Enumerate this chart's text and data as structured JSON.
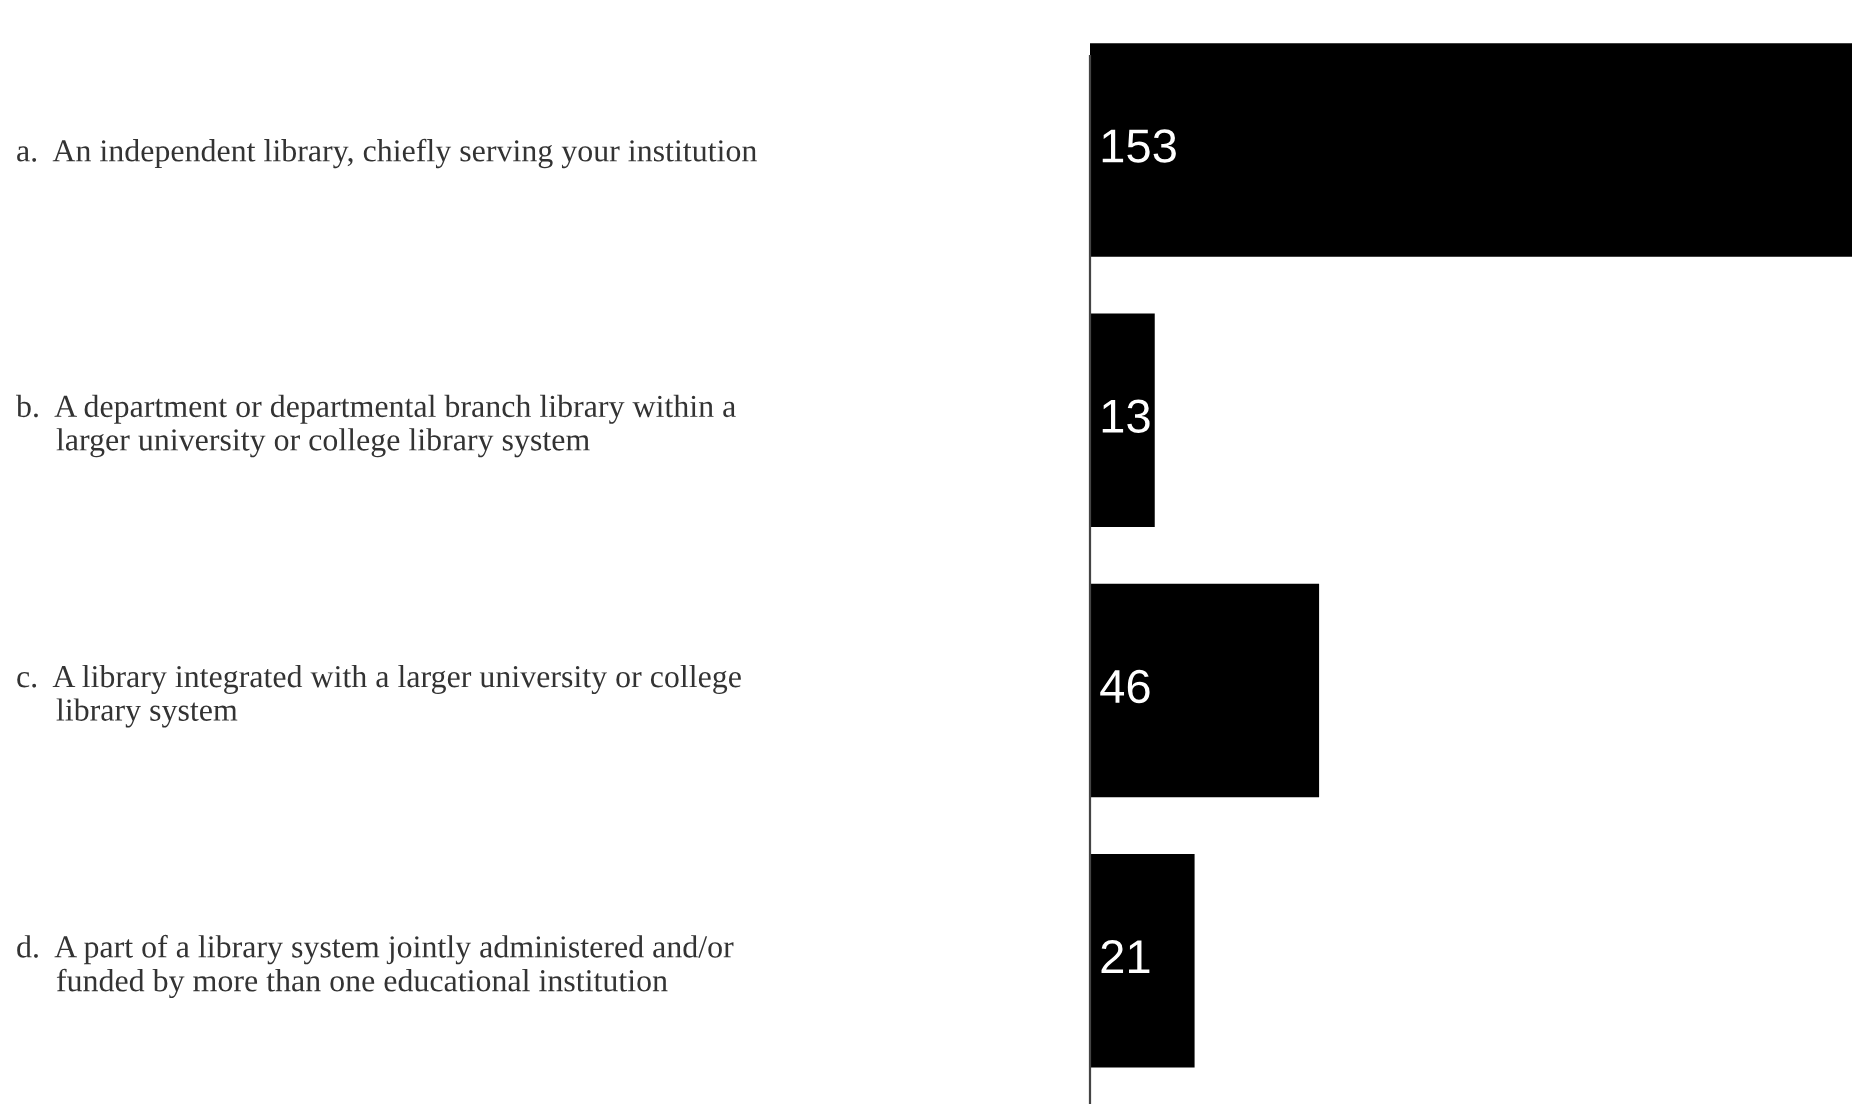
{
  "chart_data": {
    "type": "bar",
    "orientation": "horizontal",
    "categories": [
      "a.  An independent library, chiefly serving your institution",
      "b.  A department or departmental branch library within a\n     larger university or college library system",
      "c.  A library integrated with a larger university or college\n     library system",
      "d.  A part of a library system jointly administered and/or\n     funded by more than one educational institution"
    ],
    "values": [
      153,
      13,
      46,
      21
    ],
    "color": "#000000",
    "data_labels": true,
    "grid": false,
    "legend": false
  }
}
